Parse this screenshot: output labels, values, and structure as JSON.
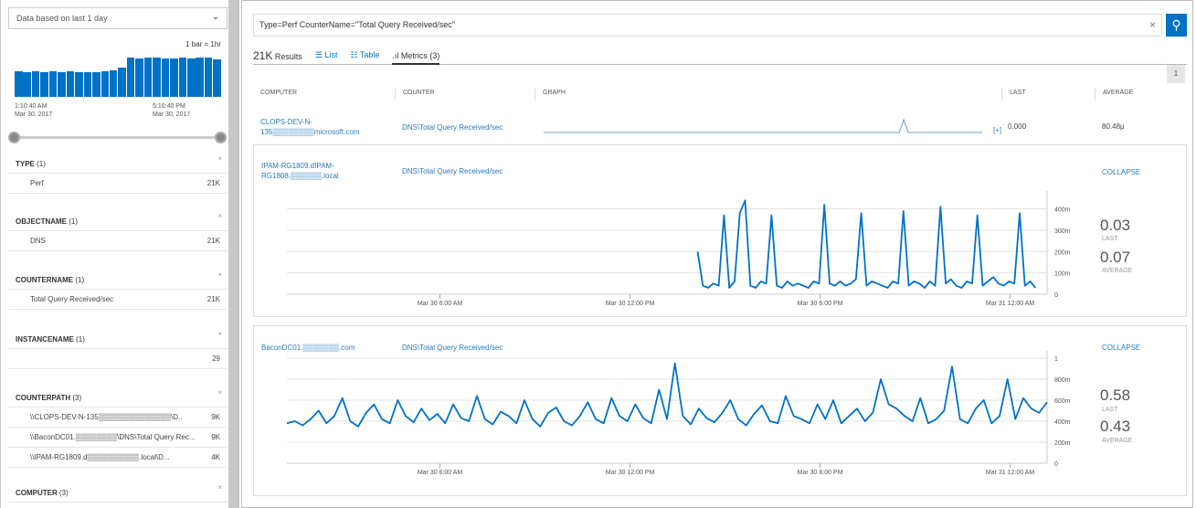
{
  "sidebar": {
    "time_range": "Data based on last 1 day",
    "bar_legend": "1 bar = 1hr",
    "histogram": [
      0.6,
      0.59,
      0.6,
      0.58,
      0.6,
      0.59,
      0.6,
      0.59,
      0.59,
      0.58,
      0.61,
      0.63,
      0.7,
      0.93,
      0.92,
      0.93,
      0.93,
      0.92,
      0.92,
      0.93,
      0.91,
      0.93,
      0.93,
      0.9
    ],
    "time_start": "1:10:40 AM",
    "date_start": "Mar 30, 2017",
    "time_mid": "5:10:40 PM",
    "date_mid": "Mar 30, 2017",
    "facets": [
      {
        "title": "TYPE",
        "count": "(1)",
        "rows": [
          {
            "label": "Perf",
            "value": "21K"
          }
        ]
      },
      {
        "title": "OBJECTNAME",
        "count": "(1)",
        "rows": [
          {
            "label": "DNS",
            "value": "21K"
          }
        ]
      },
      {
        "title": "COUNTERNAME",
        "count": "(1)",
        "rows": [
          {
            "label": "Total Query Received/sec",
            "value": "21K"
          }
        ]
      },
      {
        "title": "INSTANCENAME",
        "count": "(1)",
        "rows": [
          {
            "label": "",
            "value": "29"
          }
        ]
      },
      {
        "title": "COUNTERPATH",
        "count": "(3)",
        "rows": [
          {
            "label": "\\\\CLOPS-DEV-N-135▒▒▒▒▒▒▒▒▒▒▒▒▒▒\\D..",
            "value": "9K"
          },
          {
            "label": "\\\\BaconDC01.▒▒▒▒▒▒▒▒\\DNS\\Total Query Rec...",
            "value": "9K"
          },
          {
            "label": "\\\\IPAM-RG1809.d▒▒▒▒▒▒▒▒▒▒.local\\D...",
            "value": "4K"
          }
        ]
      },
      {
        "title": "COMPUTER",
        "count": "(3)",
        "rows": []
      }
    ],
    "close_icon": "×"
  },
  "search": {
    "query": "Type=Perf CounterName=\"Total Query Received/sec\"",
    "clear": "×",
    "icon": "search-icon"
  },
  "tabs": {
    "count": "21K",
    "results": "Results",
    "list": "☰ List",
    "table": "☷ Table",
    "metrics": ".ıl Metrics (3)"
  },
  "page": "1",
  "columns": {
    "computer": "COMPUTER",
    "counter": "COUNTER",
    "graph": "GRAPH",
    "last": "LAST",
    "average": "AVERAGE"
  },
  "rows": [
    {
      "computer": "CLOPS-DEV-N-135▒▒▒▒▒▒▒▒microsoft.com",
      "counter": "DNS\\Total Query Received/sec",
      "expand": "[+]",
      "last": "0.000",
      "average": "80.48μ",
      "sparkline": [
        0,
        0,
        0,
        0,
        0,
        0,
        0,
        0,
        0,
        0,
        0,
        0,
        0,
        0,
        0,
        0,
        0,
        0,
        0,
        0,
        0,
        0,
        0,
        0,
        0,
        0,
        0,
        0,
        0,
        0,
        0,
        0,
        0,
        0,
        0,
        0,
        0,
        0,
        0,
        0,
        0,
        0,
        0,
        0,
        0,
        0,
        0,
        0,
        0,
        0,
        0,
        0,
        0,
        0,
        0,
        0,
        0,
        0,
        0,
        0,
        0,
        0,
        0,
        0,
        0,
        0,
        0,
        0,
        0,
        0,
        0,
        0,
        0,
        0,
        0,
        0,
        0,
        0,
        1,
        0,
        0,
        0,
        0,
        0,
        0,
        0,
        0,
        0,
        0,
        0,
        0,
        0,
        0,
        0,
        0,
        0
      ]
    },
    {
      "computer": "IPAM-RG1809.dIPAM-RG1808.▒▒▒▒▒▒.local",
      "counter": "DNS\\Total Query Received/sec",
      "collapse": "COLLAPSE",
      "last": "0.03",
      "last_label": "LAST",
      "average": "0.07",
      "average_label": "AVERAGE"
    },
    {
      "computer": "BaconDC01.▒▒▒▒▒▒▒.com",
      "counter": "DNS\\Total Query Received/sec",
      "collapse": "COLLAPSE",
      "last": "0.58",
      "last_label": "LAST",
      "average": "0.43",
      "average_label": "AVERAGE"
    }
  ],
  "chart_data": [
    {
      "type": "line",
      "x_range": [
        "2017-03-30T01:10",
        "2017-03-31T01:10"
      ],
      "series_start": "2017-03-30T14:08",
      "interval_minutes": 10,
      "xticks": [
        "Mar 30 6:00 AM",
        "Mar 30 12:00 PM",
        "Mar 30 6:00 PM",
        "Mar 31 12:00 AM"
      ],
      "yticks": [
        "0",
        "100m",
        "200m",
        "300m",
        "400m"
      ],
      "ylim": [
        0,
        450
      ],
      "y_unit": "m",
      "values": [
        200,
        40,
        30,
        50,
        40,
        370,
        30,
        60,
        380,
        440,
        40,
        30,
        60,
        50,
        370,
        40,
        30,
        60,
        40,
        50,
        40,
        30,
        60,
        50,
        420,
        50,
        40,
        60,
        40,
        50,
        70,
        380,
        40,
        60,
        50,
        40,
        30,
        60,
        50,
        390,
        40,
        60,
        50,
        30,
        60,
        40,
        410,
        50,
        70,
        40,
        30,
        60,
        50,
        370,
        40,
        60,
        80,
        50,
        40,
        60,
        50,
        380,
        40,
        60,
        30
      ]
    },
    {
      "type": "line",
      "x_range": [
        "2017-03-30T01:10",
        "2017-03-31T01:10"
      ],
      "series_start": "2017-03-30T01:10",
      "interval_minutes": 15,
      "xticks": [
        "Mar 30 6:00 AM",
        "Mar 30 12:00 PM",
        "Mar 30 6:00 PM",
        "Mar 31 12:00 AM"
      ],
      "yticks": [
        "0",
        "200m",
        "400m",
        "600m",
        "800m",
        "1"
      ],
      "ylim": [
        0,
        1000
      ],
      "y_unit": "m",
      "values": [
        380,
        400,
        360,
        420,
        500,
        380,
        450,
        620,
        400,
        350,
        480,
        560,
        420,
        380,
        600,
        450,
        390,
        520,
        410,
        470,
        380,
        560,
        430,
        400,
        640,
        420,
        370,
        490,
        450,
        380,
        600,
        420,
        350,
        480,
        530,
        400,
        360,
        450,
        580,
        420,
        380,
        620,
        450,
        400,
        560,
        430,
        380,
        700,
        420,
        950,
        450,
        370,
        520,
        430,
        390,
        480,
        600,
        420,
        360,
        470,
        550,
        400,
        380,
        640,
        450,
        420,
        380,
        560,
        420,
        600,
        380,
        450,
        520,
        400,
        480,
        800,
        560,
        520,
        450,
        400,
        620,
        380,
        420,
        500,
        920,
        420,
        380,
        520,
        600,
        380,
        450,
        800,
        420,
        620,
        520,
        480,
        580
      ]
    }
  ],
  "colors": {
    "accent": "#0072c6",
    "link": "#2a7ab9"
  }
}
